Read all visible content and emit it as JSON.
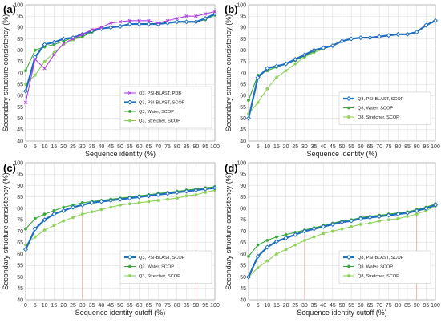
{
  "chart_data": [
    {
      "type": "line",
      "panel_label": "(a)",
      "xlabel": "Sequence identity (%)",
      "ylabel": "Secondary structure consistency (%)",
      "xlim": [
        0,
        100
      ],
      "ylim": [
        40,
        100
      ],
      "x_ticks": [
        0,
        5,
        10,
        15,
        20,
        25,
        30,
        35,
        40,
        45,
        50,
        55,
        60,
        65,
        70,
        75,
        80,
        85,
        90,
        95,
        100
      ],
      "y_ticks": [
        40,
        45,
        50,
        55,
        60,
        65,
        70,
        75,
        80,
        85,
        90,
        95,
        100
      ],
      "grid": true,
      "legend_position": "bottom-right",
      "x": [
        0,
        5,
        10,
        15,
        20,
        25,
        30,
        35,
        40,
        45,
        50,
        55,
        60,
        65,
        70,
        75,
        80,
        85,
        90,
        95,
        100
      ],
      "series": [
        {
          "name": "Q3, PSI-BLAST, PDB",
          "color": "#b040e0",
          "marker": "x",
          "values": [
            57,
            76,
            72,
            78,
            83,
            85,
            87,
            89,
            90,
            92,
            92.5,
            93,
            93,
            93,
            92,
            93,
            94,
            95,
            95,
            96,
            97
          ]
        },
        {
          "name": "Q3, PSI-BLAST, SCOP",
          "color": "#1f6fbf",
          "marker": "diamond",
          "values": [
            62,
            77,
            82.5,
            83.5,
            85,
            85.5,
            87,
            88.5,
            89.5,
            90,
            90.5,
            91.5,
            91.5,
            91.5,
            91.5,
            92,
            92.5,
            92.5,
            92.5,
            94,
            96
          ]
        },
        {
          "name": "Q3, Water, SCOP",
          "color": "#3aa83a",
          "marker": "circle",
          "values": [
            71,
            80,
            81.5,
            82.5,
            84,
            85.5,
            86,
            88,
            89.5,
            90,
            90.5,
            91.5,
            91.5,
            91.5,
            91.5,
            92,
            92.5,
            92.5,
            92.5,
            93.5,
            95.5
          ]
        },
        {
          "name": "Q3, Stretcher, SCOP",
          "color": "#8fd25a",
          "marker": "circle",
          "values": [
            65,
            69,
            75,
            79,
            82.5,
            84.5,
            86,
            88,
            89.5,
            90,
            90.5,
            91.5,
            91.5,
            91.5,
            91.5,
            92,
            92.5,
            92.5,
            92.5,
            93.5,
            95.5
          ]
        }
      ]
    },
    {
      "type": "line",
      "panel_label": "(b)",
      "xlabel": "Sequence identity (%)",
      "ylabel": "Secondary structure consistency (%)",
      "xlim": [
        0,
        100
      ],
      "ylim": [
        40,
        100
      ],
      "x_ticks": [
        0,
        5,
        10,
        15,
        20,
        25,
        30,
        35,
        40,
        45,
        50,
        55,
        60,
        65,
        70,
        75,
        80,
        85,
        90,
        95,
        100
      ],
      "y_ticks": [
        40,
        45,
        50,
        55,
        60,
        65,
        70,
        75,
        80,
        85,
        90,
        95,
        100
      ],
      "grid": true,
      "legend_position": "bottom-right",
      "x": [
        0,
        5,
        10,
        15,
        20,
        25,
        30,
        35,
        40,
        45,
        50,
        55,
        60,
        65,
        70,
        75,
        80,
        85,
        90,
        95,
        100
      ],
      "series": [
        {
          "name": "Q8, PSI-BLAST, SCOP",
          "color": "#1f6fbf",
          "marker": "diamond",
          "values": [
            50,
            68,
            72,
            73,
            74,
            76,
            78,
            80,
            81,
            82,
            84,
            85,
            85.5,
            85.5,
            86,
            86.5,
            87,
            87,
            88,
            91,
            93
          ]
        },
        {
          "name": "Q8, Water, SCOP",
          "color": "#3aa83a",
          "marker": "circle",
          "values": [
            58,
            69,
            71,
            72.5,
            74,
            75.5,
            77.5,
            79.5,
            81,
            82,
            84,
            85,
            85.5,
            85.5,
            86,
            86.5,
            87,
            87,
            88,
            91,
            93
          ]
        },
        {
          "name": "Q8, Stretcher, SCOP",
          "color": "#8fd25a",
          "marker": "circle",
          "values": [
            52,
            57,
            63,
            68,
            71,
            74,
            77,
            79,
            80.5,
            82,
            84,
            85,
            85.5,
            85.5,
            86,
            86.5,
            87,
            87,
            88,
            91,
            93
          ]
        }
      ]
    },
    {
      "type": "line",
      "panel_label": "(c)",
      "xlabel": "Sequence identity cutoff (%)",
      "ylabel": "Secondary structure consistency (%)",
      "xlim": [
        0,
        100
      ],
      "ylim": [
        40,
        100
      ],
      "x_ticks": [
        0,
        5,
        10,
        15,
        20,
        25,
        30,
        35,
        40,
        45,
        50,
        55,
        60,
        65,
        70,
        75,
        80,
        85,
        90,
        95,
        100
      ],
      "y_ticks": [
        40,
        45,
        50,
        55,
        60,
        65,
        70,
        75,
        80,
        85,
        90,
        95,
        100
      ],
      "grid": true,
      "legend_position": "bottom-right",
      "reference_lines_x": [
        30,
        90
      ],
      "x": [
        0,
        5,
        10,
        15,
        20,
        25,
        30,
        35,
        40,
        45,
        50,
        55,
        60,
        65,
        70,
        75,
        80,
        85,
        90,
        95,
        100
      ],
      "series": [
        {
          "name": "Q3, PSI-BLAST, SCOP",
          "color": "#1f6fbf",
          "marker": "diamond",
          "values": [
            62,
            71,
            75,
            77.5,
            79,
            80.5,
            81.5,
            82.5,
            83,
            83.5,
            84,
            84.5,
            85,
            85.5,
            86,
            86.5,
            87,
            87.5,
            88,
            88.5,
            89
          ]
        },
        {
          "name": "Q3, Water, SCOP",
          "color": "#3aa83a",
          "marker": "circle",
          "values": [
            71,
            75.5,
            77.5,
            79,
            80.5,
            81.5,
            82.5,
            83,
            83.5,
            84,
            84.5,
            85,
            85.5,
            86,
            86.5,
            87,
            87.5,
            88,
            88.5,
            89,
            89.5
          ]
        },
        {
          "name": "Q3, Stretcher, SCOP",
          "color": "#8fd25a",
          "marker": "circle",
          "values": [
            64,
            67.5,
            70.5,
            72.5,
            74.5,
            76,
            77.5,
            78.5,
            79.5,
            80.5,
            81.5,
            82,
            82.5,
            83,
            83.5,
            84,
            84.5,
            85.5,
            86,
            87,
            88
          ]
        }
      ]
    },
    {
      "type": "line",
      "panel_label": "(d)",
      "xlabel": "Sequence identity cutoff (%)",
      "ylabel": "Secondary structure consistency (%)",
      "xlim": [
        0,
        100
      ],
      "ylim": [
        40,
        100
      ],
      "x_ticks": [
        0,
        5,
        10,
        15,
        20,
        25,
        30,
        35,
        40,
        45,
        50,
        55,
        60,
        65,
        70,
        75,
        80,
        85,
        90,
        95,
        100
      ],
      "y_ticks": [
        40,
        45,
        50,
        55,
        60,
        65,
        70,
        75,
        80,
        85,
        90,
        95,
        100
      ],
      "grid": true,
      "legend_position": "bottom-right",
      "reference_lines_x": [
        30,
        90
      ],
      "x": [
        0,
        5,
        10,
        15,
        20,
        25,
        30,
        35,
        40,
        45,
        50,
        55,
        60,
        65,
        70,
        75,
        80,
        85,
        90,
        95,
        100
      ],
      "series": [
        {
          "name": "Q8, PSI-BLAST, SCOP",
          "color": "#1f6fbf",
          "marker": "diamond",
          "values": [
            50,
            59,
            63,
            65.5,
            67,
            68.5,
            70,
            71,
            72,
            73,
            74,
            74.5,
            75.5,
            76,
            76.5,
            77,
            77.5,
            78,
            79,
            80,
            81.5
          ]
        },
        {
          "name": "Q8, Water, SCOP",
          "color": "#3aa83a",
          "marker": "circle",
          "values": [
            59,
            64,
            66,
            67.5,
            68.5,
            69.5,
            70.5,
            71.5,
            72.5,
            73.5,
            74.5,
            75,
            76,
            76.5,
            77,
            77.5,
            78,
            78.5,
            79.5,
            80.5,
            82
          ]
        },
        {
          "name": "Q8, Stretcher, SCOP",
          "color": "#8fd25a",
          "marker": "circle",
          "values": [
            50,
            54,
            57,
            60,
            62,
            64,
            66,
            67.5,
            69,
            70,
            71,
            72,
            73,
            73.5,
            74.5,
            75,
            75.5,
            76.5,
            77.5,
            79,
            81
          ]
        }
      ]
    }
  ]
}
